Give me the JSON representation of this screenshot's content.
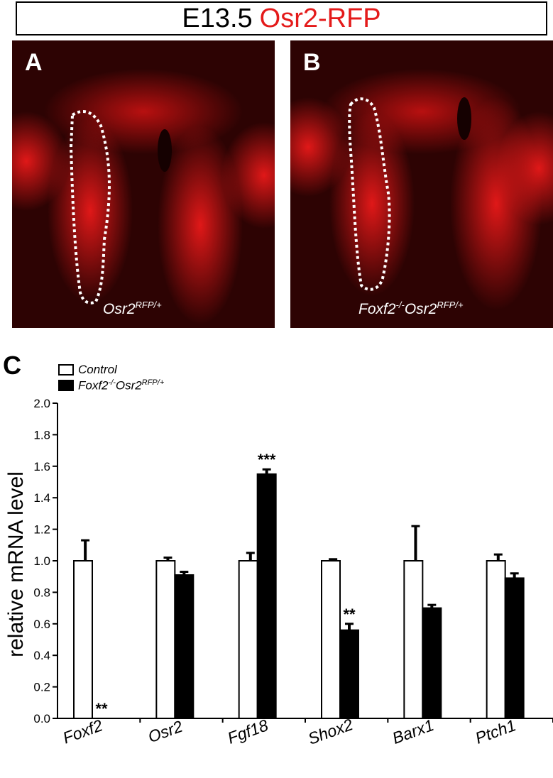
{
  "header": {
    "title_black": "E13.5",
    "title_red": "Osr2-RFP"
  },
  "panels": [
    {
      "letter": "A",
      "caption_base": "Osr2",
      "caption_sup": "RFP/+"
    },
    {
      "letter": "B",
      "caption_gene": "Foxf2",
      "caption_gene_sup": "-/-",
      "caption_base": "Osr2",
      "caption_sup": "RFP/+"
    }
  ],
  "colors": {
    "fluorescence": "#e41a1a",
    "control_bar": "#ffffff",
    "mutant_bar": "#000000"
  },
  "chart_data": {
    "panel_letter": "C",
    "type": "bar",
    "ylabel": "relative mRNA level",
    "ylim": [
      0,
      2.0
    ],
    "yticks": [
      "0.0",
      "0.2",
      "0.4",
      "0.6",
      "0.8",
      "1.0",
      "1.2",
      "1.4",
      "1.6",
      "1.8",
      "2.0"
    ],
    "categories": [
      "Foxf2",
      "Osr2",
      "Fgf18",
      "Shox2",
      "Barx1",
      "Ptch1"
    ],
    "series": [
      {
        "name": "Control",
        "values": [
          1.0,
          1.0,
          1.0,
          1.0,
          1.0,
          1.0
        ],
        "errors": [
          0.13,
          0.02,
          0.05,
          0.01,
          0.22,
          0.04
        ]
      },
      {
        "name_gene": "Foxf2",
        "name_gene_sup": "-/-",
        "name_base": "Osr2",
        "name_sup": "RFP/+",
        "values": [
          0.0,
          0.91,
          1.55,
          0.56,
          0.7,
          0.89
        ],
        "errors": [
          0.0,
          0.02,
          0.03,
          0.04,
          0.02,
          0.03
        ]
      }
    ],
    "annotations": [
      "**",
      "",
      "***",
      "**",
      "",
      ""
    ],
    "legend_position": "top-left",
    "grid": false
  }
}
